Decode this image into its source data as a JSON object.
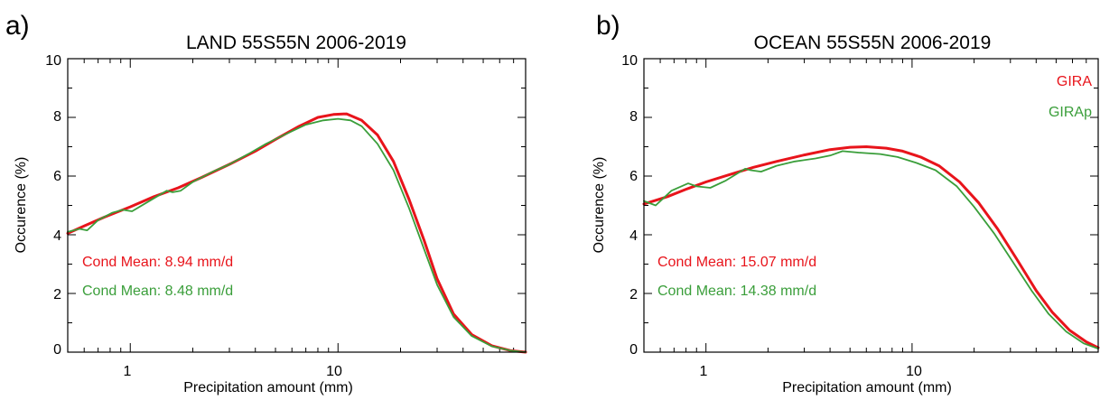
{
  "panels": [
    {
      "panel_label": "a)",
      "chart_data": {
        "type": "line",
        "title": "LAND 55S55N  2006-2019",
        "xlabel": "Precipitation amount (mm)",
        "ylabel": "Occurence (%)",
        "xscale": "log",
        "xlim": [
          0.5,
          80
        ],
        "ylim": [
          0,
          10
        ],
        "x_ticks": [
          1,
          10
        ],
        "x_tick_labels": [
          "1",
          "10"
        ],
        "y_ticks": [
          0,
          2,
          4,
          6,
          8,
          10
        ],
        "y_tick_labels": [
          "0",
          "2",
          "4",
          "6",
          "8",
          "10"
        ],
        "legend": "none",
        "series": [
          {
            "color": "#e8141b",
            "stroke": 3,
            "points": [
              [
                0.5,
                4.05
              ],
              [
                0.6,
                4.3
              ],
              [
                0.75,
                4.6
              ],
              [
                1.0,
                4.95
              ],
              [
                1.3,
                5.3
              ],
              [
                1.7,
                5.6
              ],
              [
                2.2,
                5.95
              ],
              [
                3.0,
                6.4
              ],
              [
                4.0,
                6.85
              ],
              [
                5.0,
                7.25
              ],
              [
                6.5,
                7.7
              ],
              [
                8.0,
                8.0
              ],
              [
                9.5,
                8.1
              ],
              [
                11.0,
                8.12
              ],
              [
                13.0,
                7.9
              ],
              [
                15.5,
                7.4
              ],
              [
                18.5,
                6.5
              ],
              [
                22.0,
                5.2
              ],
              [
                26.0,
                3.8
              ],
              [
                30.0,
                2.5
              ],
              [
                36.0,
                1.3
              ],
              [
                44.0,
                0.6
              ],
              [
                55.0,
                0.22
              ],
              [
                68.0,
                0.05
              ],
              [
                80.0,
                0.0
              ]
            ]
          },
          {
            "color": "#3a9e3a",
            "stroke": 1.8,
            "points": [
              [
                0.5,
                4.1
              ],
              [
                0.57,
                4.2
              ],
              [
                0.62,
                4.15
              ],
              [
                0.7,
                4.5
              ],
              [
                0.82,
                4.75
              ],
              [
                0.92,
                4.85
              ],
              [
                1.02,
                4.8
              ],
              [
                1.2,
                5.1
              ],
              [
                1.5,
                5.5
              ],
              [
                1.6,
                5.45
              ],
              [
                1.75,
                5.5
              ],
              [
                2.0,
                5.8
              ],
              [
                2.5,
                6.15
              ],
              [
                3.0,
                6.4
              ],
              [
                3.7,
                6.75
              ],
              [
                4.5,
                7.1
              ],
              [
                5.5,
                7.4
              ],
              [
                7.0,
                7.75
              ],
              [
                8.5,
                7.9
              ],
              [
                10.0,
                7.95
              ],
              [
                11.5,
                7.9
              ],
              [
                13.0,
                7.7
              ],
              [
                15.5,
                7.1
              ],
              [
                18.5,
                6.2
              ],
              [
                22.0,
                4.9
              ],
              [
                26.0,
                3.5
              ],
              [
                30.0,
                2.3
              ],
              [
                36.0,
                1.2
              ],
              [
                44.0,
                0.55
              ],
              [
                55.0,
                0.2
              ],
              [
                68.0,
                0.05
              ],
              [
                80.0,
                0.0
              ]
            ]
          }
        ],
        "annotations": [
          {
            "text": "Cond Mean: 8.94 mm/d",
            "color": "#e8141b"
          },
          {
            "text": "Cond Mean: 8.48 mm/d",
            "color": "#3a9e3a"
          }
        ]
      }
    },
    {
      "panel_label": "b)",
      "chart_data": {
        "type": "line",
        "title": "OCEAN 55S55N  2006-2019",
        "xlabel": "Precipitation amount (mm)",
        "ylabel": "Occurence (%)",
        "xscale": "log",
        "xlim": [
          0.5,
          80
        ],
        "ylim": [
          0,
          10
        ],
        "x_ticks": [
          1,
          10
        ],
        "x_tick_labels": [
          "1",
          "10"
        ],
        "y_ticks": [
          0,
          2,
          4,
          6,
          8,
          10
        ],
        "y_tick_labels": [
          "0",
          "2",
          "4",
          "6",
          "8",
          "10"
        ],
        "legend": "top-right",
        "series": [
          {
            "name": "GIRA",
            "color": "#e8141b",
            "stroke": 3,
            "points": [
              [
                0.5,
                5.05
              ],
              [
                0.65,
                5.3
              ],
              [
                0.8,
                5.55
              ],
              [
                1.0,
                5.8
              ],
              [
                1.3,
                6.05
              ],
              [
                1.7,
                6.3
              ],
              [
                2.2,
                6.5
              ],
              [
                3.0,
                6.72
              ],
              [
                4.0,
                6.9
              ],
              [
                5.0,
                6.98
              ],
              [
                6.0,
                7.0
              ],
              [
                7.5,
                6.95
              ],
              [
                9.0,
                6.85
              ],
              [
                11.0,
                6.65
              ],
              [
                13.5,
                6.35
              ],
              [
                17.0,
                5.8
              ],
              [
                21.0,
                5.1
              ],
              [
                26.0,
                4.2
              ],
              [
                32.0,
                3.2
              ],
              [
                40.0,
                2.1
              ],
              [
                48.0,
                1.35
              ],
              [
                58.0,
                0.75
              ],
              [
                70.0,
                0.35
              ],
              [
                80.0,
                0.15
              ]
            ]
          },
          {
            "name": "GIRAp",
            "color": "#3a9e3a",
            "stroke": 1.8,
            "points": [
              [
                0.5,
                5.15
              ],
              [
                0.57,
                5.0
              ],
              [
                0.68,
                5.5
              ],
              [
                0.82,
                5.75
              ],
              [
                0.9,
                5.65
              ],
              [
                1.05,
                5.6
              ],
              [
                1.25,
                5.85
              ],
              [
                1.55,
                6.25
              ],
              [
                1.65,
                6.2
              ],
              [
                1.85,
                6.15
              ],
              [
                2.2,
                6.35
              ],
              [
                2.7,
                6.5
              ],
              [
                3.4,
                6.6
              ],
              [
                4.0,
                6.7
              ],
              [
                4.6,
                6.85
              ],
              [
                5.5,
                6.8
              ],
              [
                7.0,
                6.75
              ],
              [
                8.5,
                6.65
              ],
              [
                10.5,
                6.45
              ],
              [
                13.0,
                6.2
              ],
              [
                16.5,
                5.65
              ],
              [
                20.0,
                4.95
              ],
              [
                25.0,
                4.05
              ],
              [
                31.0,
                3.05
              ],
              [
                38.0,
                2.1
              ],
              [
                46.0,
                1.3
              ],
              [
                56.0,
                0.7
              ],
              [
                68.0,
                0.3
              ],
              [
                80.0,
                0.12
              ]
            ]
          }
        ],
        "annotations": [
          {
            "text": "Cond Mean: 15.07 mm/d",
            "color": "#e8141b"
          },
          {
            "text": "Cond Mean: 14.38 mm/d",
            "color": "#3a9e3a"
          }
        ]
      }
    }
  ]
}
